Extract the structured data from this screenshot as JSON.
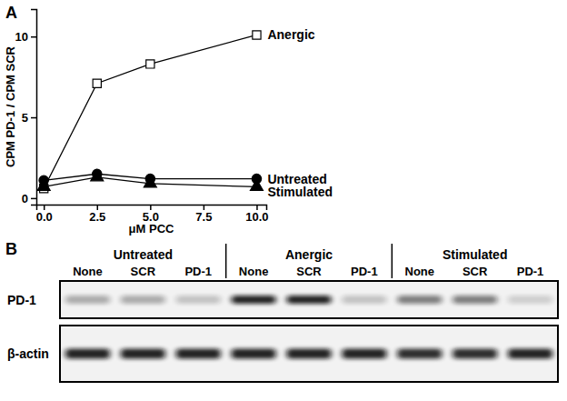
{
  "chart_data": {
    "type": "line",
    "title": "A",
    "x_label": "μM PCC",
    "y_label": "CPM PD-1 / CPM SCR",
    "x": [
      0,
      2.5,
      5,
      10
    ],
    "series": [
      {
        "name": "Anergic",
        "color": "#000000",
        "marker": "open-square",
        "line_style": "solid",
        "values": [
          0.6,
          7.1,
          8.3,
          10.1
        ]
      },
      {
        "name": "Untreated",
        "color": "#000000",
        "marker": "circle",
        "line_style": "solid",
        "values": [
          1.1,
          1.5,
          1.2,
          1.2
        ]
      },
      {
        "name": "Stimulated",
        "color": "#000000",
        "marker": "triangle",
        "line_style": "solid",
        "values": [
          0.7,
          1.3,
          0.9,
          0.7
        ]
      }
    ],
    "xlim": [
      -0.35,
      10.45
    ],
    "xticks": [
      {
        "value": 0,
        "label": "0.0"
      },
      2.5,
      {
        "value": 5,
        "label": "5.0"
      },
      7.5,
      {
        "value": 10,
        "label": "10.0"
      }
    ],
    "ylim": [
      -0.4,
      11.7
    ],
    "yticks": [
      0,
      5,
      10
    ],
    "grid": false
  },
  "blot": {
    "panel": "B",
    "groups": [
      {
        "label": "Untreated",
        "lanes": [
          "None",
          "SCR",
          "PD-1"
        ]
      },
      {
        "label": "Anergic",
        "lanes": [
          "None",
          "SCR",
          "PD-1"
        ]
      },
      {
        "label": "Stimulated",
        "lanes": [
          "None",
          "SCR",
          "PD-1"
        ]
      }
    ],
    "rows": [
      {
        "label": "PD-1",
        "intensity": [
          0.3,
          0.3,
          0.2,
          0.9,
          0.9,
          0.2,
          0.5,
          0.5,
          0.15
        ]
      },
      {
        "label": "β-actin",
        "intensity": [
          0.9,
          0.9,
          0.9,
          0.9,
          0.9,
          0.9,
          0.85,
          0.85,
          0.9
        ]
      }
    ]
  }
}
